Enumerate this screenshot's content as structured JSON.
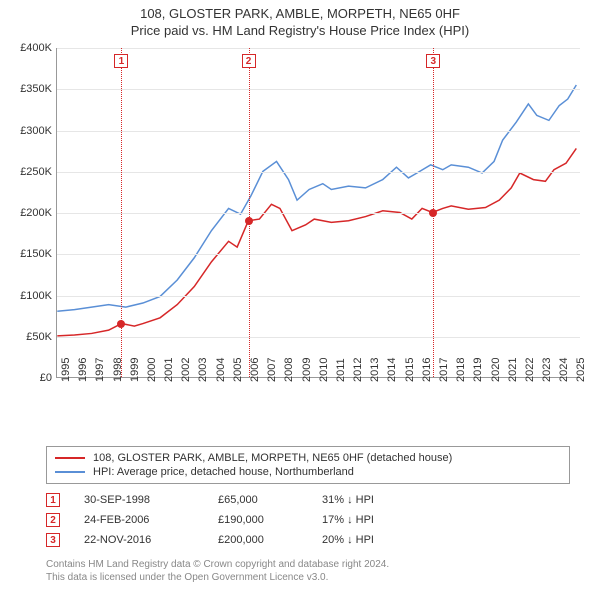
{
  "title_line1": "108, GLOSTER PARK, AMBLE, MORPETH, NE65 0HF",
  "title_line2": "Price paid vs. HM Land Registry's House Price Index (HPI)",
  "chart": {
    "type": "line",
    "background_color": "#ffffff",
    "grid_color": "#e6e6e6",
    "axis_color": "#999999",
    "text_color": "#333333",
    "label_fontsize": 11,
    "title_fontsize": 13,
    "xlim": [
      1995,
      2025.5
    ],
    "ylim": [
      0,
      400000
    ],
    "ytick_step": 50000,
    "yticks": [
      "£0",
      "£50K",
      "£100K",
      "£150K",
      "£200K",
      "£250K",
      "£300K",
      "£350K",
      "£400K"
    ],
    "xticks": [
      1995,
      1996,
      1997,
      1998,
      1999,
      2000,
      2001,
      2002,
      2003,
      2004,
      2005,
      2006,
      2007,
      2008,
      2009,
      2010,
      2011,
      2012,
      2013,
      2014,
      2015,
      2016,
      2017,
      2018,
      2019,
      2020,
      2021,
      2022,
      2023,
      2024,
      2025
    ],
    "series": [
      {
        "name": "108, GLOSTER PARK, AMBLE, MORPETH, NE65 0HF (detached house)",
        "color": "#d62728",
        "line_width": 1.5,
        "data": [
          [
            1995,
            50000
          ],
          [
            1996,
            51000
          ],
          [
            1997,
            53000
          ],
          [
            1998,
            57000
          ],
          [
            1998.75,
            65000
          ],
          [
            1999.5,
            62000
          ],
          [
            2000,
            65000
          ],
          [
            2001,
            72000
          ],
          [
            2002,
            88000
          ],
          [
            2003,
            110000
          ],
          [
            2004,
            140000
          ],
          [
            2005,
            165000
          ],
          [
            2005.5,
            158000
          ],
          [
            2006.15,
            190000
          ],
          [
            2006.8,
            192000
          ],
          [
            2007.5,
            210000
          ],
          [
            2008,
            205000
          ],
          [
            2008.7,
            178000
          ],
          [
            2009.5,
            185000
          ],
          [
            2010,
            192000
          ],
          [
            2011,
            188000
          ],
          [
            2012,
            190000
          ],
          [
            2013,
            195000
          ],
          [
            2014,
            202000
          ],
          [
            2015,
            200000
          ],
          [
            2015.7,
            192000
          ],
          [
            2016.3,
            205000
          ],
          [
            2016.9,
            200000
          ],
          [
            2017.5,
            205000
          ],
          [
            2018,
            208000
          ],
          [
            2019,
            204000
          ],
          [
            2020,
            206000
          ],
          [
            2020.8,
            215000
          ],
          [
            2021.5,
            230000
          ],
          [
            2022,
            248000
          ],
          [
            2022.8,
            240000
          ],
          [
            2023.5,
            238000
          ],
          [
            2024,
            252000
          ],
          [
            2024.7,
            260000
          ],
          [
            2025.3,
            278000
          ]
        ]
      },
      {
        "name": "HPI: Average price, detached house, Northumberland",
        "color": "#5a8fd6",
        "line_width": 1.5,
        "data": [
          [
            1995,
            80000
          ],
          [
            1996,
            82000
          ],
          [
            1997,
            85000
          ],
          [
            1998,
            88000
          ],
          [
            1999,
            85000
          ],
          [
            2000,
            90000
          ],
          [
            2001,
            98000
          ],
          [
            2002,
            118000
          ],
          [
            2003,
            145000
          ],
          [
            2004,
            178000
          ],
          [
            2005,
            205000
          ],
          [
            2005.7,
            198000
          ],
          [
            2006.3,
            220000
          ],
          [
            2007,
            250000
          ],
          [
            2007.8,
            262000
          ],
          [
            2008.5,
            240000
          ],
          [
            2009,
            215000
          ],
          [
            2009.7,
            228000
          ],
          [
            2010.5,
            235000
          ],
          [
            2011,
            228000
          ],
          [
            2012,
            232000
          ],
          [
            2013,
            230000
          ],
          [
            2014,
            240000
          ],
          [
            2014.8,
            255000
          ],
          [
            2015.5,
            242000
          ],
          [
            2016,
            248000
          ],
          [
            2016.8,
            258000
          ],
          [
            2017.5,
            252000
          ],
          [
            2018,
            258000
          ],
          [
            2019,
            255000
          ],
          [
            2019.8,
            248000
          ],
          [
            2020.5,
            262000
          ],
          [
            2021,
            288000
          ],
          [
            2021.8,
            310000
          ],
          [
            2022.5,
            332000
          ],
          [
            2023,
            318000
          ],
          [
            2023.7,
            312000
          ],
          [
            2024.3,
            330000
          ],
          [
            2024.8,
            338000
          ],
          [
            2025.3,
            355000
          ]
        ]
      }
    ],
    "markers": [
      {
        "n": "1",
        "x": 1998.75,
        "y": 65000
      },
      {
        "n": "2",
        "x": 2006.15,
        "y": 190000
      },
      {
        "n": "3",
        "x": 2016.9,
        "y": 200000
      }
    ],
    "marker_border_color": "#d62728",
    "marker_dotted_color": "#d62728"
  },
  "legend": {
    "border_color": "#999999",
    "items": [
      {
        "color": "#d62728",
        "label": "108, GLOSTER PARK, AMBLE, MORPETH, NE65 0HF (detached house)"
      },
      {
        "color": "#5a8fd6",
        "label": "HPI: Average price, detached house, Northumberland"
      }
    ]
  },
  "events": [
    {
      "n": "1",
      "date": "30-SEP-1998",
      "price": "£65,000",
      "diff": "31% ↓ HPI"
    },
    {
      "n": "2",
      "date": "24-FEB-2006",
      "price": "£190,000",
      "diff": "17% ↓ HPI"
    },
    {
      "n": "3",
      "date": "22-NOV-2016",
      "price": "£200,000",
      "diff": "20% ↓ HPI"
    }
  ],
  "footer_line1": "Contains HM Land Registry data © Crown copyright and database right 2024.",
  "footer_line2": "This data is licensed under the Open Government Licence v3.0.",
  "footer_color": "#888888"
}
